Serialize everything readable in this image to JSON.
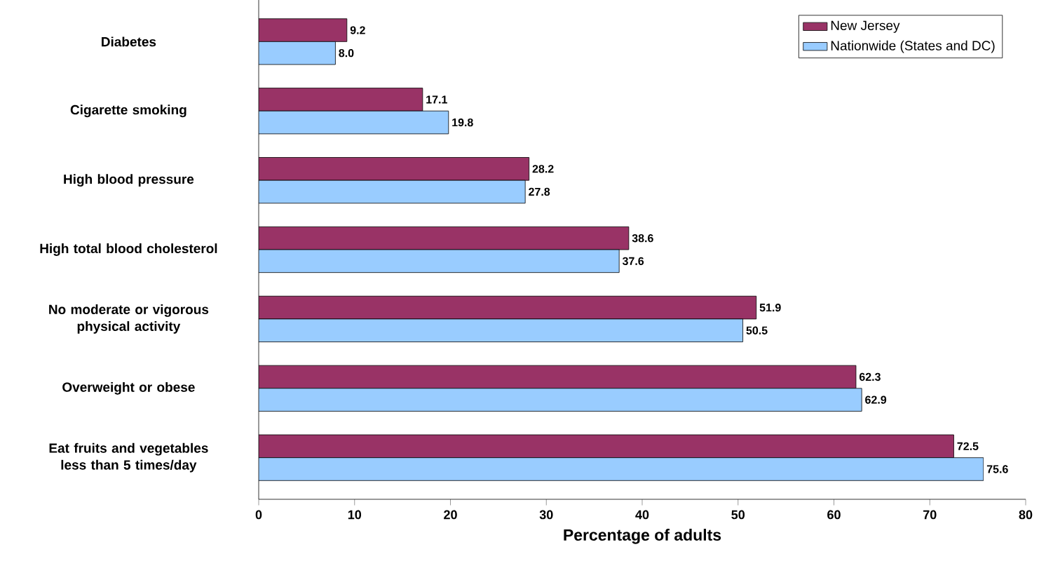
{
  "chart_data": {
    "type": "bar",
    "orientation": "horizontal",
    "xlabel": "Percentage of adults",
    "categories": [
      "Diabetes",
      "Cigarette smoking",
      "High blood pressure",
      "High total blood cholesterol",
      "No moderate or vigorous physical activity",
      "Overweight or obese",
      "Eat fruits and vegetables less than 5 times/day"
    ],
    "series": [
      {
        "name": "New Jersey",
        "color": "#993366",
        "values": [
          9.2,
          17.1,
          28.2,
          38.6,
          51.9,
          62.3,
          72.5
        ],
        "value_labels": [
          "9.2",
          "17.1",
          "28.2",
          "38.6",
          "51.9",
          "62.3",
          "72.5"
        ]
      },
      {
        "name": "Nationwide (States and DC)",
        "color": "#99ccff",
        "values": [
          8.0,
          19.8,
          27.8,
          37.6,
          50.5,
          62.9,
          75.6
        ],
        "value_labels": [
          "8.0",
          "19.8",
          "27.8",
          "37.6",
          "50.5",
          "62.9",
          "75.6"
        ]
      }
    ],
    "xlim": [
      0,
      80
    ],
    "xticks": [
      0,
      10,
      20,
      30,
      40,
      50,
      60,
      70,
      80
    ],
    "legend": "top right",
    "grid": false
  }
}
